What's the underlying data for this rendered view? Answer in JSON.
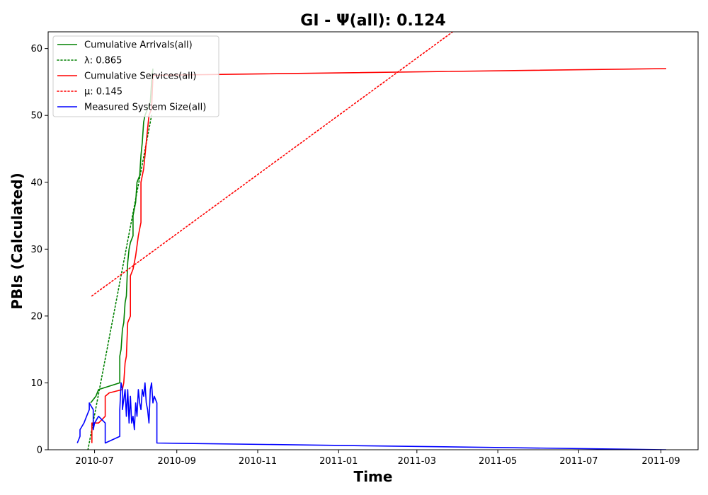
{
  "chart_data": {
    "type": "line",
    "title": "GI -  Ψ(all): 0.124",
    "xlabel": "Time",
    "ylabel": "PBIs (Calculated)",
    "x_type": "date",
    "xlim": [
      "2010-05-27",
      "2011-09-29"
    ],
    "ylim": [
      0,
      62.5
    ],
    "x_ticks": [
      "2010-07",
      "2010-09",
      "2010-11",
      "2011-01",
      "2011-03",
      "2011-05",
      "2011-07",
      "2011-09"
    ],
    "y_ticks": [
      0,
      10,
      20,
      30,
      40,
      50,
      60
    ],
    "grid": false,
    "legend_position": "top-left",
    "series": [
      {
        "name": "Cumulative Arrivals(all)",
        "legend_label": "Cumulative Arrivals(all)",
        "style": "solid",
        "color": "#008000",
        "points": [
          [
            "2010-06-28",
            7
          ],
          [
            "2010-07-02",
            8
          ],
          [
            "2010-07-04",
            9
          ],
          [
            "2010-07-20",
            10
          ],
          [
            "2010-07-20",
            14
          ],
          [
            "2010-07-21",
            15
          ],
          [
            "2010-07-22",
            18
          ],
          [
            "2010-07-23",
            19
          ],
          [
            "2010-07-24",
            22
          ],
          [
            "2010-07-25",
            23
          ],
          [
            "2010-07-26",
            28
          ],
          [
            "2010-07-27",
            30
          ],
          [
            "2010-07-28",
            31
          ],
          [
            "2010-07-30",
            32
          ],
          [
            "2010-07-30",
            35
          ],
          [
            "2010-08-01",
            37
          ],
          [
            "2010-08-02",
            40
          ],
          [
            "2010-08-04",
            41
          ],
          [
            "2010-08-05",
            44
          ],
          [
            "2010-08-06",
            46
          ],
          [
            "2010-08-07",
            49
          ],
          [
            "2010-08-08",
            50
          ],
          [
            "2010-08-10",
            51
          ],
          [
            "2010-08-12",
            52
          ],
          [
            "2010-08-13",
            55
          ],
          [
            "2010-08-14",
            57
          ]
        ]
      },
      {
        "name": "λ: 0.865",
        "legend_label": "λ: 0.865",
        "style": "dotted",
        "color": "#008000",
        "points": [
          [
            "2010-06-26",
            0
          ],
          [
            "2010-08-13",
            50
          ]
        ]
      },
      {
        "name": "Cumulative Services(all)",
        "legend_label": "Cumulative Services(all)",
        "style": "solid",
        "color": "#ff0000",
        "points": [
          [
            "2010-06-29",
            1
          ],
          [
            "2010-06-29",
            4
          ],
          [
            "2010-07-04",
            4
          ],
          [
            "2010-07-09",
            5
          ],
          [
            "2010-07-09",
            8
          ],
          [
            "2010-07-12",
            8.5
          ],
          [
            "2010-07-22",
            9
          ],
          [
            "2010-07-23",
            10
          ],
          [
            "2010-07-24",
            13
          ],
          [
            "2010-07-25",
            14
          ],
          [
            "2010-07-26",
            19
          ],
          [
            "2010-07-28",
            20
          ],
          [
            "2010-07-28",
            26
          ],
          [
            "2010-07-30",
            27
          ],
          [
            "2010-08-01",
            29
          ],
          [
            "2010-08-03",
            32
          ],
          [
            "2010-08-05",
            34
          ],
          [
            "2010-08-05",
            40
          ],
          [
            "2010-08-07",
            42
          ],
          [
            "2010-08-08",
            44
          ],
          [
            "2010-08-09",
            46
          ],
          [
            "2010-08-10",
            48
          ],
          [
            "2010-08-11",
            50
          ],
          [
            "2010-08-13",
            51
          ],
          [
            "2010-08-14",
            56
          ],
          [
            "2011-09-05",
            57
          ]
        ]
      },
      {
        "name": "μ: 0.145",
        "legend_label": "μ: 0.145",
        "style": "dotted",
        "color": "#ff0000",
        "points": [
          [
            "2010-06-29",
            23
          ],
          [
            "2011-03-28",
            62.5
          ]
        ]
      },
      {
        "name": "Measured System Size(all)",
        "legend_label": "Measured System Size(all)",
        "style": "solid",
        "color": "#0000ff",
        "points": [
          [
            "2010-06-18",
            1
          ],
          [
            "2010-06-20",
            2
          ],
          [
            "2010-06-20",
            3
          ],
          [
            "2010-06-23",
            4
          ],
          [
            "2010-06-25",
            5
          ],
          [
            "2010-06-27",
            6
          ],
          [
            "2010-06-27",
            7
          ],
          [
            "2010-06-30",
            6
          ],
          [
            "2010-06-30",
            3
          ],
          [
            "2010-07-01",
            4
          ],
          [
            "2010-07-04",
            5
          ],
          [
            "2010-07-09",
            4
          ],
          [
            "2010-07-09",
            1
          ],
          [
            "2010-07-20",
            2
          ],
          [
            "2010-07-20",
            6
          ],
          [
            "2010-07-21",
            10
          ],
          [
            "2010-07-22",
            9
          ],
          [
            "2010-07-22",
            6
          ],
          [
            "2010-07-24",
            9
          ],
          [
            "2010-07-25",
            5
          ],
          [
            "2010-07-26",
            9
          ],
          [
            "2010-07-27",
            4
          ],
          [
            "2010-07-28",
            8
          ],
          [
            "2010-07-29",
            4
          ],
          [
            "2010-07-30",
            5
          ],
          [
            "2010-07-31",
            3
          ],
          [
            "2010-08-01",
            7
          ],
          [
            "2010-08-02",
            5
          ],
          [
            "2010-08-03",
            9
          ],
          [
            "2010-08-04",
            7
          ],
          [
            "2010-08-05",
            6
          ],
          [
            "2010-08-06",
            9
          ],
          [
            "2010-08-07",
            8
          ],
          [
            "2010-08-08",
            10
          ],
          [
            "2010-08-09",
            7
          ],
          [
            "2010-08-10",
            6
          ],
          [
            "2010-08-11",
            4
          ],
          [
            "2010-08-12",
            9
          ],
          [
            "2010-08-13",
            10
          ],
          [
            "2010-08-14",
            7
          ],
          [
            "2010-08-15",
            8
          ],
          [
            "2010-08-17",
            7
          ],
          [
            "2010-08-17",
            1
          ],
          [
            "2011-09-05",
            0
          ]
        ]
      }
    ]
  }
}
